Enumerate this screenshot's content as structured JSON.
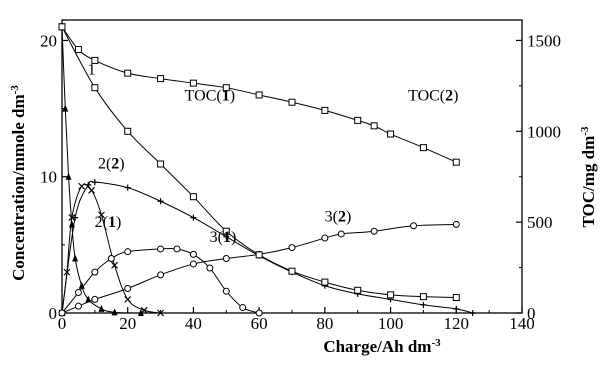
{
  "chart_data": {
    "type": "line",
    "xlabel": "Charge/Ah dm",
    "xlabel_sup": "-3",
    "ylabel": "Concentration/mmole dm",
    "ylabel_sup": "-3",
    "y2label": "TOC/mg dm",
    "y2label_sup": "-3",
    "xlim": [
      0,
      140
    ],
    "ylim": [
      0,
      21.5
    ],
    "y2lim": [
      0,
      1612.5
    ],
    "xticks": [
      "0",
      "20",
      "40",
      "60",
      "80",
      "100",
      "120",
      "140"
    ],
    "yticks": [
      "0",
      "10",
      "20"
    ],
    "y2ticks": [
      "0",
      "500",
      "1000",
      "1500"
    ],
    "grid": false,
    "series": [
      {
        "name": "1",
        "axis": "left",
        "marker": "triangle",
        "x": [
          0,
          1,
          2,
          3,
          4,
          6,
          8,
          12,
          16,
          24
        ],
        "y": [
          21,
          15,
          10,
          6.5,
          4,
          2,
          1,
          0.3,
          0.05,
          0
        ]
      },
      {
        "name": "2(1)",
        "axis": "left",
        "marker": "x",
        "x": [
          0,
          1.5,
          3,
          6,
          9,
          12,
          16,
          20,
          25,
          30
        ],
        "y": [
          0,
          3,
          7,
          9.3,
          9,
          7.2,
          3.5,
          1,
          0.2,
          0
        ]
      },
      {
        "name": "2(2)",
        "axis": "left",
        "marker": "plus",
        "x": [
          0,
          4,
          8,
          10,
          20,
          30,
          40,
          50,
          60,
          70,
          80,
          90,
          100,
          110,
          120,
          125
        ],
        "y": [
          0,
          7,
          9.4,
          9.6,
          9.2,
          8.2,
          7,
          5.6,
          4.2,
          3,
          2,
          1.4,
          1,
          0.6,
          0.3,
          0
        ]
      },
      {
        "name": "3(1)",
        "axis": "left",
        "marker": "circle",
        "x": [
          0,
          5,
          10,
          15,
          20,
          30,
          35,
          40,
          45,
          50,
          55,
          60
        ],
        "y": [
          0,
          1.5,
          3,
          4,
          4.5,
          4.7,
          4.7,
          4.3,
          3.3,
          1.6,
          0.4,
          0
        ]
      },
      {
        "name": "3(2)",
        "axis": "left",
        "marker": "circle",
        "x": [
          0,
          5,
          10,
          20,
          30,
          40,
          50,
          60,
          70,
          80,
          85,
          95,
          107,
          120
        ],
        "y": [
          0,
          0.5,
          1,
          1.8,
          2.8,
          3.6,
          4,
          4.3,
          4.8,
          5.5,
          5.8,
          6,
          6.4,
          6.5
        ]
      },
      {
        "name": "TOC(1)",
        "axis": "right",
        "marker": "square",
        "x": [
          0,
          10,
          20,
          30,
          40,
          50,
          60,
          70,
          80,
          90,
          100,
          110,
          120
        ],
        "y": [
          1575,
          1240,
          1000,
          820,
          640,
          450,
          320,
          230,
          170,
          125,
          100,
          90,
          85
        ]
      },
      {
        "name": "TOC(2)",
        "axis": "right",
        "marker": "square",
        "x": [
          0,
          5,
          10,
          20,
          30,
          40,
          50,
          60,
          70,
          80,
          90,
          95,
          100,
          110,
          120
        ],
        "y": [
          1575,
          1450,
          1390,
          1320,
          1290,
          1265,
          1240,
          1200,
          1160,
          1115,
          1060,
          1030,
          985,
          910,
          830
        ]
      }
    ],
    "annotations": [
      {
        "text": "1",
        "x": 9,
        "y": 17.5,
        "bold": ""
      },
      {
        "text": "TOC(",
        "x": 45,
        "y": 1170,
        "axis": "right",
        "bold": "1",
        "close": ")"
      },
      {
        "text": "TOC(",
        "x": 113,
        "y": 1170,
        "axis": "right",
        "bold": "2",
        "close": ")"
      },
      {
        "text": "2(",
        "x": 15,
        "y": 10.6,
        "bold": "2",
        "close": ")"
      },
      {
        "text": "2(",
        "x": 14,
        "y": 6.3,
        "bold": "1",
        "close": ")"
      },
      {
        "text": "3(",
        "x": 84,
        "y": 6.7,
        "bold": "2",
        "close": ")"
      },
      {
        "text": "3(",
        "x": 49,
        "y": 5.2,
        "bold": "1",
        "close": ")"
      }
    ]
  }
}
